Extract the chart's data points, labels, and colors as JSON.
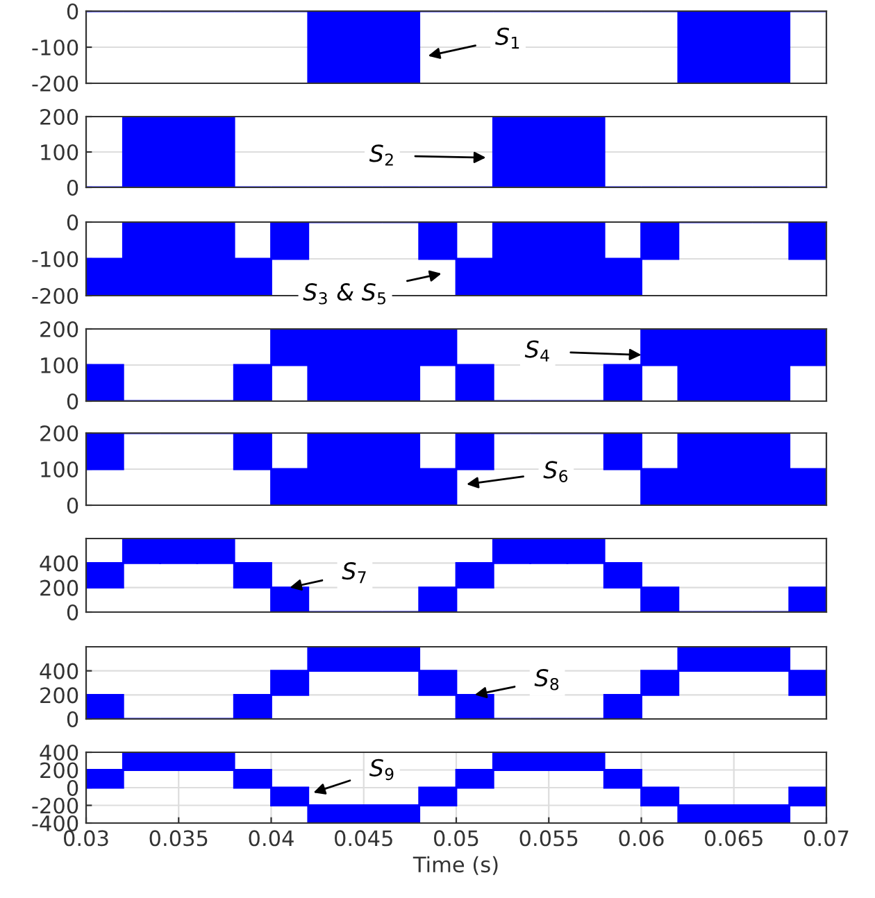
{
  "chart_data": [
    {
      "type": "bar",
      "x": [
        0.031,
        0.033,
        0.035,
        0.037,
        0.039,
        0.041,
        0.043,
        0.045,
        0.047,
        0.049,
        0.051,
        0.053,
        0.055,
        0.057,
        0.059,
        0.061,
        0.063,
        0.065,
        0.067,
        0.069
      ],
      "xlim": [
        0.03,
        0.07
      ],
      "ylim": [
        -200,
        0
      ],
      "yticks": [
        -200,
        -100,
        0
      ],
      "grid": "y",
      "tick_labels": "y",
      "series": [
        {
          "color": "#0000ff",
          "base": [
            0,
            0,
            0,
            0,
            0,
            0,
            -200,
            -200,
            -200,
            0,
            0,
            0,
            0,
            0,
            0,
            0,
            -200,
            -200,
            -200,
            0
          ],
          "values": [
            0,
            0,
            0,
            0,
            0,
            0,
            200,
            200,
            200,
            0,
            0,
            0,
            0,
            0,
            0,
            0,
            200,
            200,
            200,
            0
          ]
        }
      ],
      "annotations": [
        "S$_{1}$"
      ]
    },
    {
      "type": "bar",
      "x": [
        0.031,
        0.033,
        0.035,
        0.037,
        0.039,
        0.041,
        0.043,
        0.045,
        0.047,
        0.049,
        0.051,
        0.053,
        0.055,
        0.057,
        0.059,
        0.061,
        0.063,
        0.065,
        0.067,
        0.069
      ],
      "xlim": [
        0.03,
        0.07
      ],
      "ylim": [
        0,
        200
      ],
      "yticks": [
        0,
        100,
        200
      ],
      "grid": "y",
      "tick_labels": "y",
      "series": [
        {
          "color": "#0000ff",
          "values": [
            0,
            200,
            200,
            200,
            0,
            0,
            0,
            0,
            0,
            0,
            0,
            200,
            200,
            200,
            0,
            0,
            0,
            0,
            0,
            0
          ]
        }
      ],
      "annotations": [
        "S$_{2}$"
      ]
    },
    {
      "type": "bar",
      "x": [
        0.031,
        0.033,
        0.035,
        0.037,
        0.039,
        0.041,
        0.043,
        0.045,
        0.047,
        0.049,
        0.051,
        0.053,
        0.055,
        0.057,
        0.059,
        0.061,
        0.063,
        0.065,
        0.067,
        0.069
      ],
      "xlim": [
        0.03,
        0.07
      ],
      "ylim": [
        -200,
        0
      ],
      "yticks": [
        -200,
        -100,
        0
      ],
      "grid": "y",
      "tick_labels": "y",
      "series": [
        {
          "color": "#0000ff",
          "base": [
            -200,
            -200,
            -200,
            -200,
            -200,
            -100,
            0,
            0,
            0,
            -100,
            -200,
            -200,
            -200,
            -200,
            -200,
            -100,
            0,
            0,
            0,
            -100
          ],
          "values": [
            100,
            200,
            200,
            200,
            100,
            100,
            0,
            0,
            0,
            100,
            100,
            200,
            200,
            200,
            100,
            100,
            0,
            0,
            0,
            100
          ]
        }
      ],
      "annotations": [
        "S$_{3}$ & S$_{5}$"
      ]
    },
    {
      "type": "bar",
      "x": [
        0.031,
        0.033,
        0.035,
        0.037,
        0.039,
        0.041,
        0.043,
        0.045,
        0.047,
        0.049,
        0.051,
        0.053,
        0.055,
        0.057,
        0.059,
        0.061,
        0.063,
        0.065,
        0.067,
        0.069
      ],
      "xlim": [
        0.03,
        0.07
      ],
      "ylim": [
        0,
        200
      ],
      "yticks": [
        0,
        100,
        200
      ],
      "grid": "y",
      "tick_labels": "y",
      "series": [
        {
          "color": "#0000ff",
          "base": [
            0,
            0,
            0,
            0,
            0,
            100,
            0,
            0,
            0,
            100,
            0,
            0,
            0,
            0,
            0,
            100,
            0,
            0,
            0,
            100
          ],
          "values": [
            100,
            0,
            0,
            0,
            100,
            100,
            200,
            200,
            200,
            100,
            100,
            0,
            0,
            0,
            100,
            100,
            200,
            200,
            200,
            100
          ]
        }
      ],
      "annotations": [
        "S$_{4}$"
      ]
    },
    {
      "type": "bar",
      "x": [
        0.031,
        0.033,
        0.035,
        0.037,
        0.039,
        0.041,
        0.043,
        0.045,
        0.047,
        0.049,
        0.051,
        0.053,
        0.055,
        0.057,
        0.059,
        0.061,
        0.063,
        0.065,
        0.067,
        0.069
      ],
      "xlim": [
        0.03,
        0.07
      ],
      "ylim": [
        0,
        200
      ],
      "yticks": [
        0,
        100,
        200
      ],
      "grid": "y",
      "tick_labels": "y",
      "series": [
        {
          "color": "#0000ff",
          "base": [
            100,
            200,
            200,
            200,
            100,
            0,
            0,
            0,
            0,
            0,
            100,
            200,
            200,
            200,
            100,
            0,
            0,
            0,
            0,
            0
          ],
          "values": [
            100,
            0,
            0,
            0,
            100,
            100,
            200,
            200,
            200,
            100,
            100,
            0,
            0,
            0,
            100,
            100,
            200,
            200,
            200,
            100
          ]
        }
      ],
      "annotations": [
        "S$_{6}$"
      ]
    },
    {
      "type": "bar",
      "x": [
        0.031,
        0.033,
        0.035,
        0.037,
        0.039,
        0.041,
        0.043,
        0.045,
        0.047,
        0.049,
        0.051,
        0.053,
        0.055,
        0.057,
        0.059,
        0.061,
        0.063,
        0.065,
        0.067,
        0.069
      ],
      "xlim": [
        0.03,
        0.07
      ],
      "ylim": [
        0,
        600
      ],
      "yticks": [
        0,
        200,
        400
      ],
      "grid": "y",
      "tick_labels": "y",
      "series": [
        {
          "color": "#0000ff",
          "base": [
            200,
            400,
            400,
            400,
            200,
            0,
            0,
            0,
            0,
            0,
            200,
            400,
            400,
            400,
            200,
            0,
            0,
            0,
            0,
            0
          ],
          "values": [
            200,
            200,
            200,
            200,
            200,
            200,
            0,
            0,
            0,
            200,
            200,
            200,
            200,
            200,
            200,
            200,
            0,
            0,
            0,
            200
          ]
        }
      ],
      "annotations": [
        {
          "text": "S$_{7}$",
          "x": 0.041,
          "y": 200
        }
      ]
    },
    {
      "type": "bar",
      "x": [
        0.031,
        0.033,
        0.035,
        0.037,
        0.039,
        0.041,
        0.043,
        0.045,
        0.047,
        0.049,
        0.051,
        0.053,
        0.055,
        0.057,
        0.059,
        0.061,
        0.063,
        0.065,
        0.067,
        0.069
      ],
      "xlim": [
        0.03,
        0.07
      ],
      "ylim": [
        0,
        600
      ],
      "yticks": [
        0,
        200,
        400
      ],
      "grid": "y",
      "tick_labels": "y",
      "series": [
        {
          "color": "#0000ff",
          "base": [
            0,
            0,
            0,
            0,
            0,
            200,
            400,
            400,
            400,
            200,
            0,
            0,
            0,
            0,
            0,
            200,
            400,
            400,
            400,
            200
          ],
          "values": [
            200,
            0,
            0,
            0,
            200,
            200,
            200,
            200,
            200,
            200,
            200,
            0,
            0,
            0,
            200,
            200,
            200,
            200,
            200,
            200
          ]
        }
      ],
      "annotations": [
        {
          "text": "S$_{8}$",
          "x": 0.051,
          "y": 200
        }
      ]
    },
    {
      "type": "bar",
      "x": [
        0.031,
        0.033,
        0.035,
        0.037,
        0.039,
        0.041,
        0.043,
        0.045,
        0.047,
        0.049,
        0.051,
        0.053,
        0.055,
        0.057,
        0.059,
        0.061,
        0.063,
        0.065,
        0.067,
        0.069
      ],
      "xlim": [
        0.03,
        0.07
      ],
      "ylim": [
        -400,
        400
      ],
      "yticks": [
        -400,
        -200,
        0,
        200,
        400
      ],
      "xticks": [
        0.03,
        0.035,
        0.04,
        0.045,
        0.05,
        0.055,
        0.06,
        0.065,
        0.07
      ],
      "grid": true,
      "xlabel": "Time (s)",
      "series": [
        {
          "color": "#0000ff",
          "base": [
            0,
            200,
            200,
            200,
            0,
            -200,
            -400,
            -400,
            -400,
            -200,
            0,
            200,
            200,
            200,
            0,
            -200,
            -400,
            -400,
            -400,
            -200
          ],
          "values": [
            200,
            200,
            200,
            200,
            200,
            200,
            200,
            200,
            200,
            200,
            200,
            200,
            200,
            200,
            200,
            200,
            200,
            200,
            200,
            200
          ]
        }
      ],
      "annotations": [
        "S$_{9}$"
      ]
    }
  ]
}
